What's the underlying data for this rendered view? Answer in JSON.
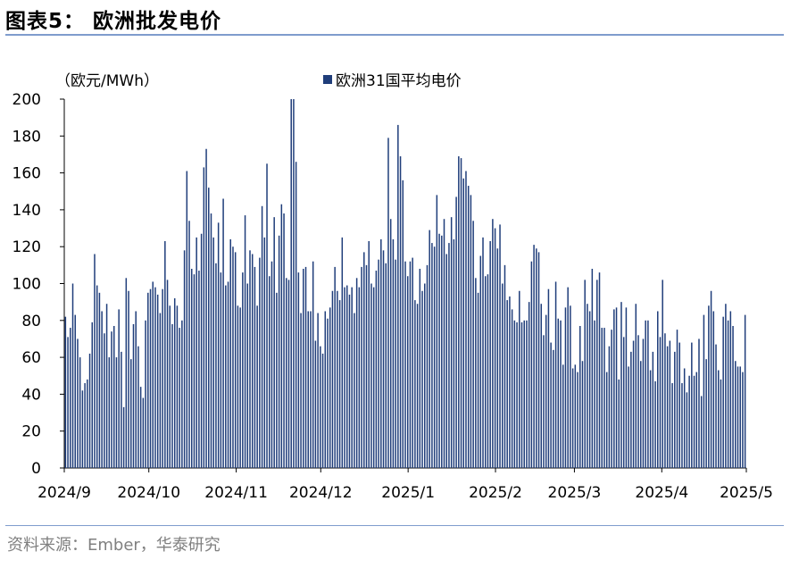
{
  "figure": {
    "title": "图表5：  欧洲批发电价",
    "source": "资料来源：Ember，华泰研究"
  },
  "colors": {
    "bar": "#1f3d7a",
    "rule": "#7f9ccd",
    "source_text": "#808080"
  },
  "chart_data": {
    "type": "bar",
    "title": "",
    "unit_label": "（欧元/MWh）",
    "xlabel": "",
    "ylabel": "",
    "ylim": [
      0,
      200
    ],
    "yticks": [
      0,
      20,
      40,
      60,
      80,
      100,
      120,
      140,
      160,
      180,
      200
    ],
    "xtick_labels": [
      "2024/9",
      "2024/10",
      "2024/11",
      "2024/12",
      "2025/1",
      "2025/2",
      "2025/3",
      "2025/4",
      "2025/5"
    ],
    "x_start": "2024-09-01",
    "x_end": "2025-05-01",
    "legend": {
      "position": "top-center",
      "entries": [
        "欧洲31国平均电价"
      ]
    },
    "grid": false,
    "series": [
      {
        "name": "欧洲31国平均电价",
        "values": [
          82,
          71,
          76,
          100,
          83,
          70,
          60,
          42,
          46,
          48,
          62,
          79,
          116,
          99,
          95,
          85,
          73,
          89,
          60,
          74,
          77,
          60,
          86,
          63,
          33,
          103,
          96,
          59,
          78,
          85,
          66,
          44,
          38,
          80,
          95,
          97,
          101,
          98,
          94,
          84,
          97,
          123,
          102,
          88,
          78,
          92,
          88,
          76,
          80,
          118,
          161,
          134,
          108,
          105,
          125,
          107,
          127,
          163,
          173,
          152,
          138,
          125,
          111,
          133,
          106,
          146,
          99,
          101,
          124,
          120,
          117,
          88,
          87,
          106,
          137,
          100,
          118,
          116,
          109,
          88,
          114,
          142,
          125,
          165,
          104,
          112,
          136,
          95,
          126,
          143,
          138,
          103,
          102,
          200,
          200,
          166,
          106,
          84,
          108,
          109,
          85,
          85,
          112,
          69,
          84,
          66,
          62,
          85,
          81,
          87,
          96,
          109,
          96,
          91,
          125,
          98,
          99,
          94,
          98,
          84,
          103,
          98,
          109,
          117,
          110,
          123,
          100,
          98,
          107,
          113,
          124,
          118,
          111,
          179,
          135,
          124,
          113,
          186,
          169,
          156,
          112,
          104,
          112,
          114,
          91,
          89,
          108,
          96,
          100,
          110,
          129,
          122,
          120,
          148,
          127,
          126,
          135,
          116,
          122,
          136,
          124,
          147,
          169,
          168,
          157,
          161,
          153,
          148,
          134,
          103,
          95,
          115,
          125,
          104,
          105,
          123,
          135,
          130,
          119,
          132,
          100,
          110,
          91,
          93,
          86,
          80,
          79,
          96,
          79,
          80,
          80,
          90,
          112,
          121,
          119,
          117,
          89,
          72,
          83,
          97,
          68,
          64,
          101,
          81,
          80,
          56,
          87,
          98,
          88,
          54,
          56,
          52,
          77,
          58,
          102,
          89,
          85,
          108,
          80,
          102,
          106,
          76,
          76,
          52,
          66,
          75,
          86,
          87,
          48,
          90,
          71,
          87,
          55,
          63,
          69,
          89,
          72,
          58,
          70,
          80,
          80,
          53,
          63,
          47,
          85,
          71,
          102,
          73,
          66,
          69,
          46,
          63,
          75,
          68,
          46,
          54,
          41,
          50,
          68,
          50,
          52,
          70,
          39,
          83,
          59,
          88,
          96,
          85,
          67,
          53,
          48,
          82,
          89,
          80,
          85,
          77,
          58,
          55,
          55,
          52,
          83
        ]
      }
    ]
  }
}
